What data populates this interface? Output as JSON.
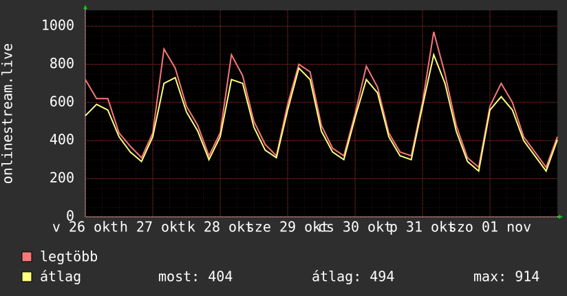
{
  "chart_data": {
    "type": "line",
    "y_label": "onlinestream.live",
    "x": [
      0,
      4,
      8,
      12,
      16,
      20,
      24,
      28,
      32,
      36,
      40,
      44,
      48,
      52,
      56,
      60,
      64,
      68,
      72,
      76,
      80,
      84,
      88,
      92,
      96,
      100,
      104,
      108,
      112,
      116,
      120,
      124,
      128,
      132,
      136,
      140,
      144,
      148,
      152,
      156,
      160,
      164,
      168
    ],
    "xlim": [
      0,
      168
    ],
    "xticks": [
      {
        "value": 0,
        "label": "v 26 okt"
      },
      {
        "value": 24,
        "label": "h 27 okt"
      },
      {
        "value": 48,
        "label": "k 28 okt"
      },
      {
        "value": 72,
        "label": "sze 29 okt"
      },
      {
        "value": 96,
        "label": "cs 30 okt"
      },
      {
        "value": 120,
        "label": "p 31 okt"
      },
      {
        "value": 144,
        "label": "szo 01 nov"
      }
    ],
    "ylim": [
      0,
      1083
    ],
    "yticks": [
      0,
      200,
      400,
      600,
      800,
      1000
    ],
    "grid": true,
    "series": [
      {
        "name": "legtöbb",
        "color": "#f87878",
        "values": [
          720,
          620,
          620,
          440,
          370,
          310,
          440,
          880,
          780,
          580,
          480,
          320,
          440,
          850,
          740,
          500,
          380,
          320,
          590,
          800,
          760,
          480,
          360,
          320,
          540,
          790,
          680,
          440,
          340,
          320,
          600,
          970,
          750,
          480,
          310,
          260,
          580,
          700,
          600,
          420,
          340,
          260,
          420
        ]
      },
      {
        "name": "átlag",
        "color": "#ffff80",
        "values": [
          530,
          590,
          560,
          420,
          340,
          290,
          420,
          700,
          730,
          550,
          450,
          300,
          420,
          720,
          700,
          470,
          350,
          310,
          560,
          780,
          720,
          450,
          340,
          300,
          520,
          720,
          650,
          420,
          320,
          300,
          580,
          850,
          700,
          450,
          290,
          240,
          560,
          630,
          560,
          400,
          320,
          240,
          404
        ]
      }
    ],
    "stats": [
      {
        "label": "most:",
        "value": 404
      },
      {
        "label": "átlag:",
        "value": 494
      },
      {
        "label": "max:",
        "value": 914
      }
    ]
  }
}
